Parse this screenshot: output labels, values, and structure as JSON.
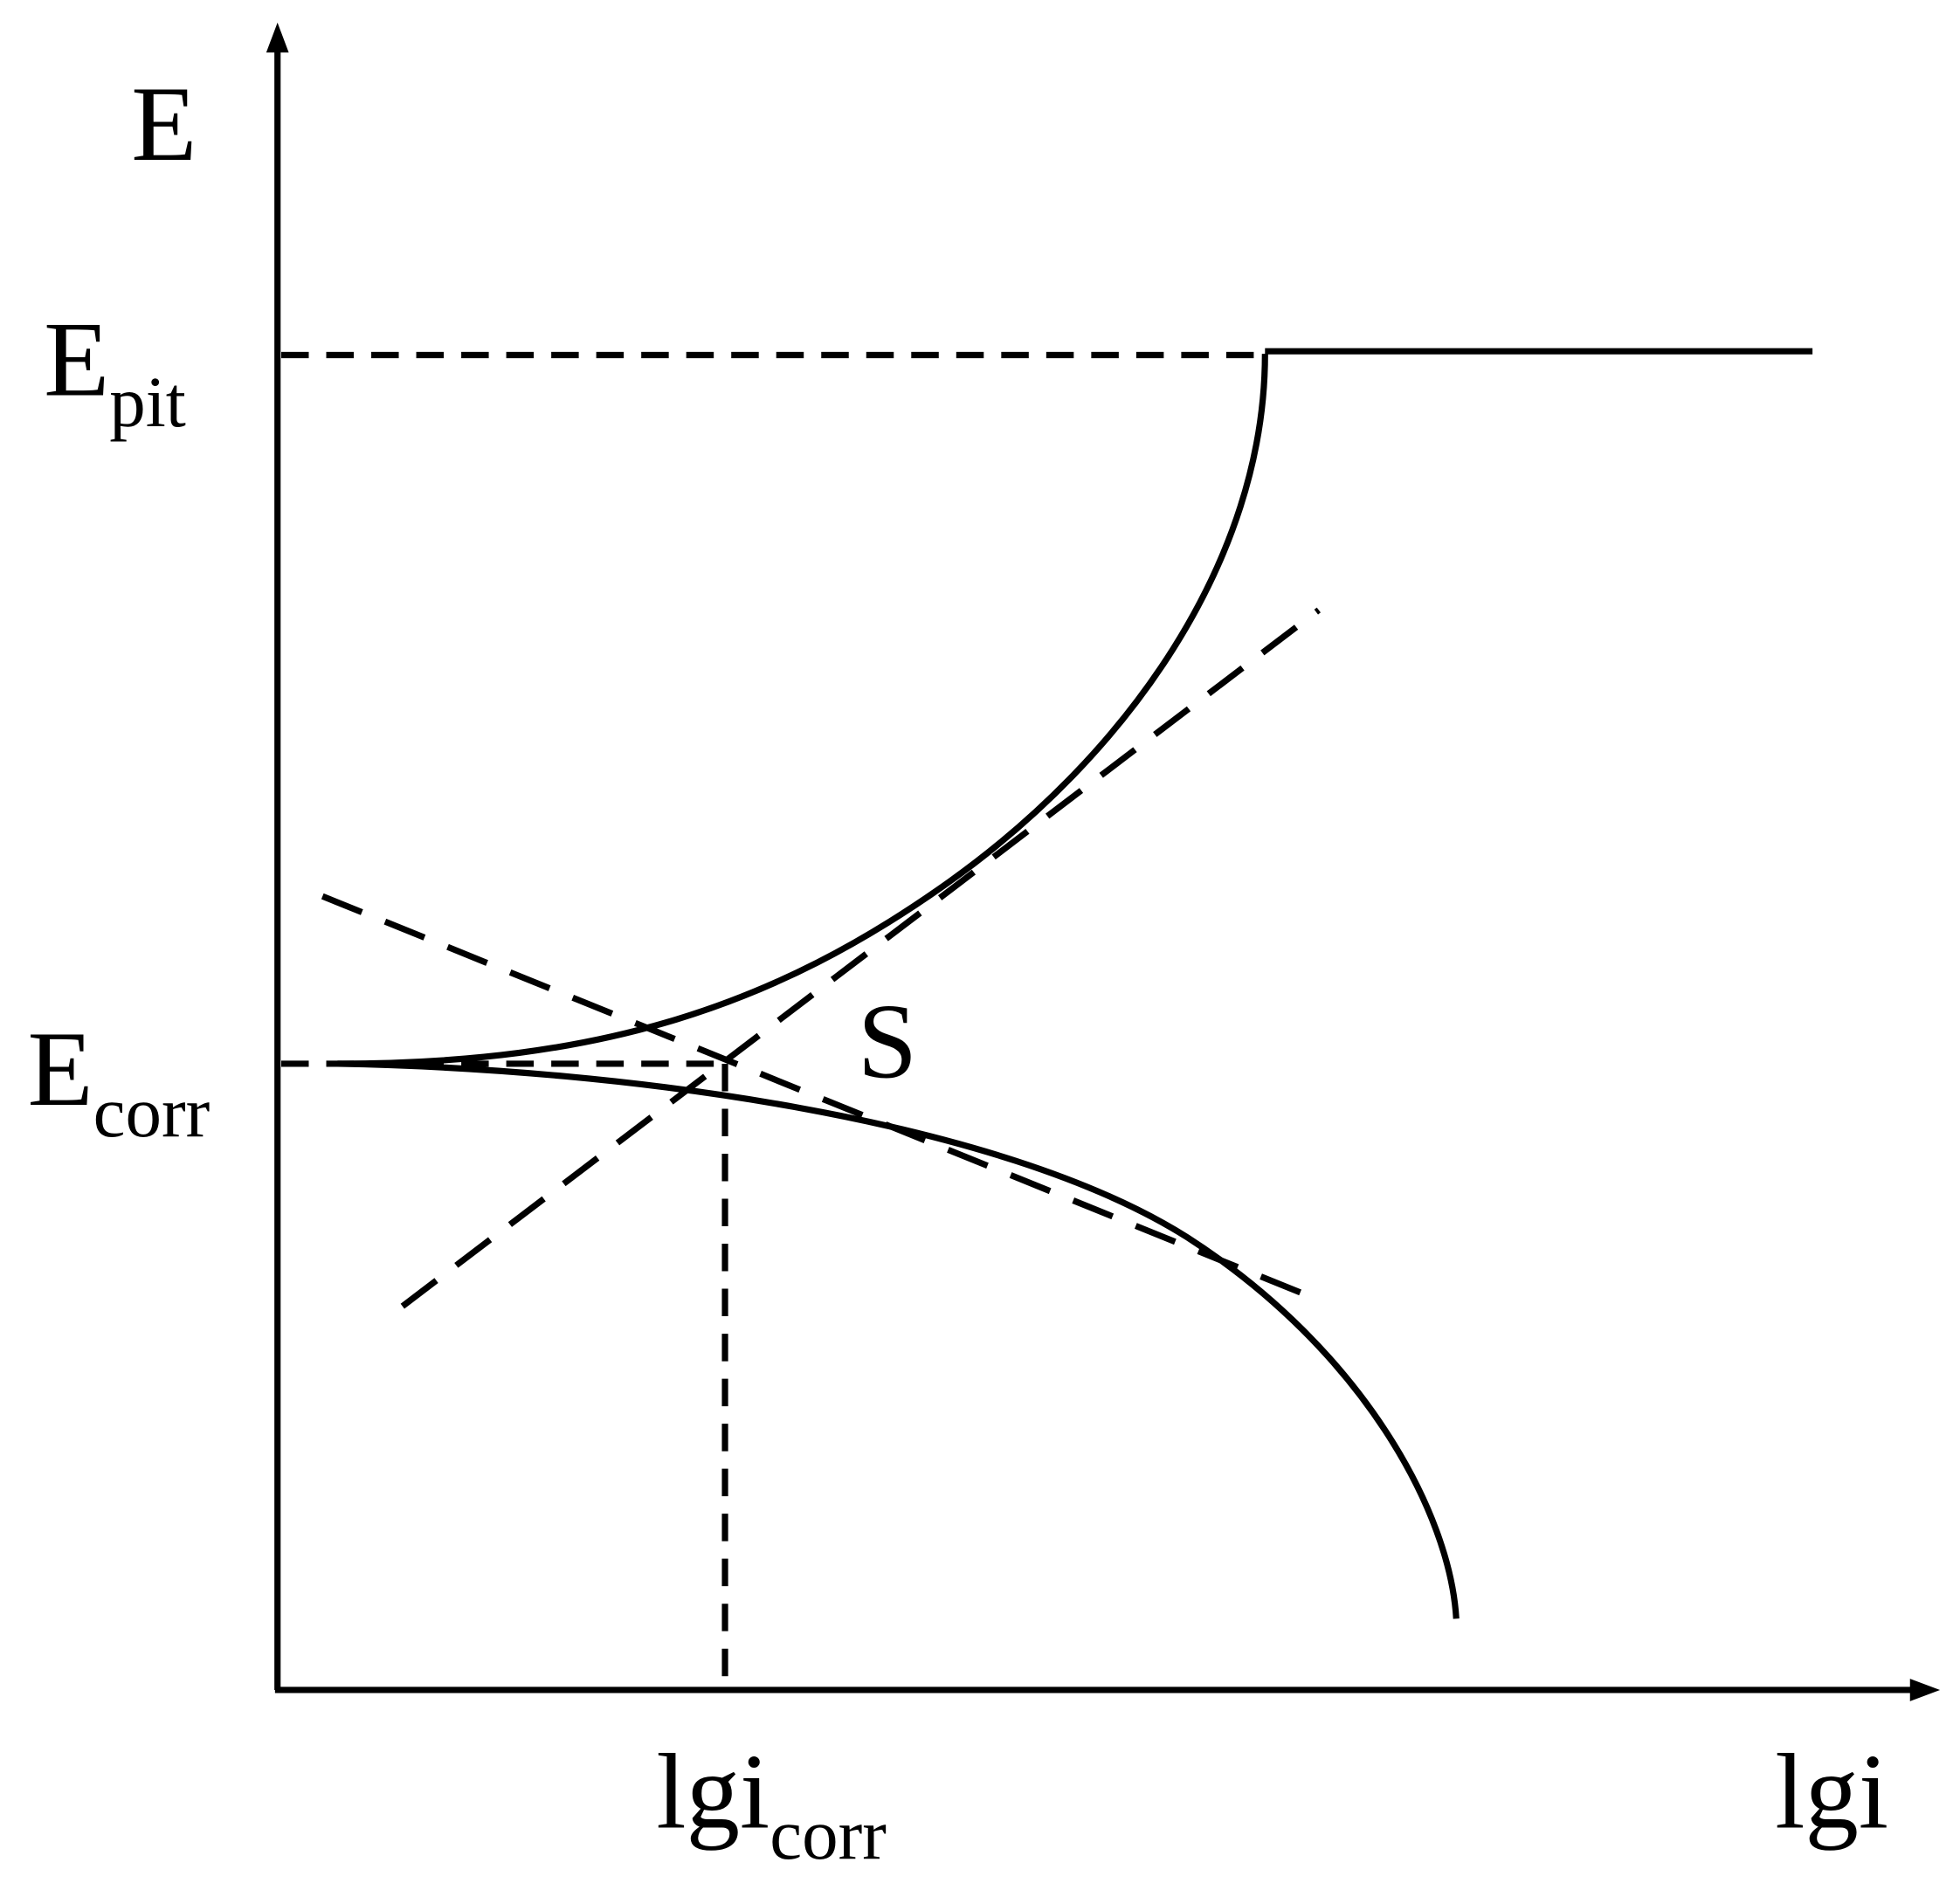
{
  "axes": {
    "y_label": "E",
    "x_label": "lgi"
  },
  "levels": {
    "e_pit": {
      "main": "E",
      "sub": "pit"
    },
    "e_corr": {
      "main": "E",
      "sub": "corr"
    }
  },
  "x_marker": {
    "main": "lgi",
    "sub": "corr"
  },
  "point_label": "S"
}
